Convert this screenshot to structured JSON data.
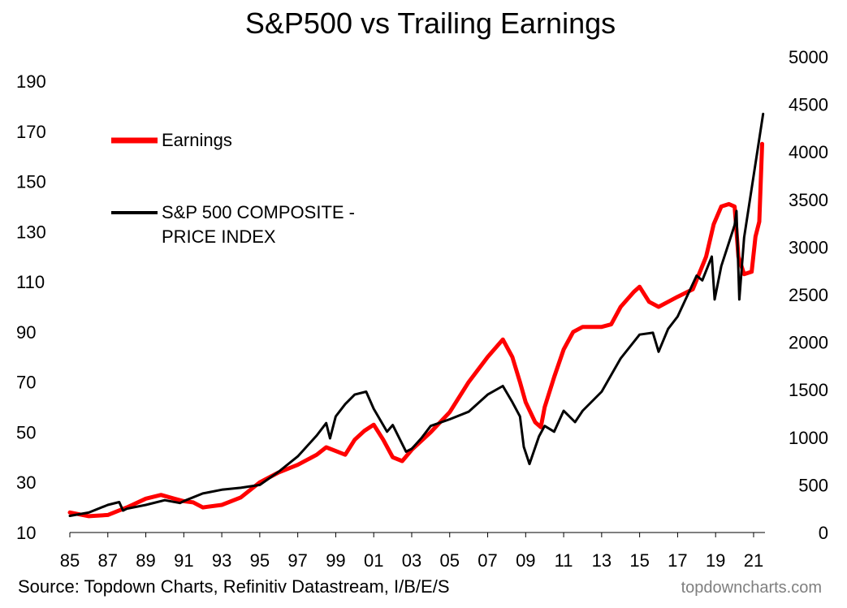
{
  "chart_data": {
    "type": "line",
    "title": "S&P500 vs Trailing Earnings",
    "x_ticks": [
      "85",
      "87",
      "89",
      "91",
      "93",
      "95",
      "97",
      "99",
      "01",
      "03",
      "05",
      "07",
      "09",
      "11",
      "13",
      "15",
      "17",
      "19",
      "21"
    ],
    "x_range": [
      1985,
      2021.6
    ],
    "y_left": {
      "range": [
        10,
        190
      ],
      "ticks": [
        10,
        30,
        50,
        70,
        90,
        110,
        130,
        150,
        170,
        190
      ]
    },
    "y_right": {
      "range": [
        0,
        5000
      ],
      "ticks": [
        0,
        500,
        1000,
        1500,
        2000,
        2500,
        3000,
        3500,
        4000,
        4500,
        5000
      ]
    },
    "legend": {
      "placement": "top-left",
      "entries": [
        "Earnings",
        "S&P 500 COMPOSITE -",
        "PRICE INDEX"
      ]
    },
    "series": [
      {
        "name": "Earnings",
        "axis": "left",
        "color": "#ff0000",
        "points": [
          [
            1985.0,
            18
          ],
          [
            1986.0,
            16.5
          ],
          [
            1987.0,
            17
          ],
          [
            1988.0,
            20
          ],
          [
            1989.0,
            23.5
          ],
          [
            1989.8,
            25
          ],
          [
            1990.5,
            23.5
          ],
          [
            1991.0,
            22.5
          ],
          [
            1991.5,
            22
          ],
          [
            1992.0,
            20
          ],
          [
            1993.0,
            21
          ],
          [
            1994.0,
            24
          ],
          [
            1995.0,
            30
          ],
          [
            1996.0,
            34
          ],
          [
            1997.0,
            37
          ],
          [
            1998.0,
            41
          ],
          [
            1998.5,
            44
          ],
          [
            1999.0,
            42.5
          ],
          [
            1999.5,
            41
          ],
          [
            2000.0,
            47
          ],
          [
            2000.5,
            50.5
          ],
          [
            2001.0,
            53
          ],
          [
            2001.5,
            47
          ],
          [
            2002.0,
            40
          ],
          [
            2002.5,
            38.5
          ],
          [
            2003.0,
            43
          ],
          [
            2004.0,
            50
          ],
          [
            2005.0,
            58
          ],
          [
            2006.0,
            70
          ],
          [
            2007.0,
            80
          ],
          [
            2007.8,
            87
          ],
          [
            2008.3,
            80
          ],
          [
            2008.7,
            70
          ],
          [
            2009.0,
            62
          ],
          [
            2009.5,
            54
          ],
          [
            2009.8,
            52
          ],
          [
            2010.0,
            60
          ],
          [
            2010.5,
            72
          ],
          [
            2011.0,
            83
          ],
          [
            2011.5,
            90
          ],
          [
            2012.0,
            92
          ],
          [
            2013.0,
            92
          ],
          [
            2013.5,
            93
          ],
          [
            2014.0,
            100
          ],
          [
            2014.7,
            106
          ],
          [
            2015.0,
            108
          ],
          [
            2015.5,
            102
          ],
          [
            2016.0,
            100
          ],
          [
            2016.5,
            102
          ],
          [
            2017.0,
            104
          ],
          [
            2017.8,
            107
          ],
          [
            2018.5,
            120
          ],
          [
            2018.9,
            133
          ],
          [
            2019.3,
            140
          ],
          [
            2019.7,
            141
          ],
          [
            2020.0,
            140
          ],
          [
            2020.2,
            120
          ],
          [
            2020.5,
            113
          ],
          [
            2020.9,
            114
          ],
          [
            2021.1,
            128
          ],
          [
            2021.3,
            134
          ],
          [
            2021.45,
            165
          ]
        ]
      },
      {
        "name": "S&P 500 COMPOSITE - PRICE INDEX",
        "axis": "right",
        "color": "#000000",
        "points": [
          [
            1985.0,
            175
          ],
          [
            1986.0,
            210
          ],
          [
            1987.0,
            290
          ],
          [
            1987.6,
            320
          ],
          [
            1987.8,
            230
          ],
          [
            1988.0,
            250
          ],
          [
            1989.0,
            290
          ],
          [
            1990.0,
            340
          ],
          [
            1990.8,
            310
          ],
          [
            1991.0,
            330
          ],
          [
            1992.0,
            410
          ],
          [
            1993.0,
            450
          ],
          [
            1994.0,
            470
          ],
          [
            1995.0,
            500
          ],
          [
            1996.0,
            640
          ],
          [
            1997.0,
            800
          ],
          [
            1998.0,
            1020
          ],
          [
            1998.5,
            1150
          ],
          [
            1998.7,
            990
          ],
          [
            1999.0,
            1220
          ],
          [
            1999.5,
            1350
          ],
          [
            2000.0,
            1450
          ],
          [
            2000.6,
            1480
          ],
          [
            2001.0,
            1300
          ],
          [
            2001.7,
            1060
          ],
          [
            2002.0,
            1130
          ],
          [
            2002.7,
            850
          ],
          [
            2003.0,
            880
          ],
          [
            2003.5,
            990
          ],
          [
            2004.0,
            1120
          ],
          [
            2005.0,
            1190
          ],
          [
            2006.0,
            1270
          ],
          [
            2007.0,
            1450
          ],
          [
            2007.8,
            1540
          ],
          [
            2008.3,
            1370
          ],
          [
            2008.7,
            1220
          ],
          [
            2008.9,
            900
          ],
          [
            2009.2,
            720
          ],
          [
            2009.7,
            1010
          ],
          [
            2010.0,
            1120
          ],
          [
            2010.5,
            1060
          ],
          [
            2011.0,
            1280
          ],
          [
            2011.6,
            1160
          ],
          [
            2012.0,
            1280
          ],
          [
            2013.0,
            1480
          ],
          [
            2014.0,
            1830
          ],
          [
            2015.0,
            2080
          ],
          [
            2015.7,
            2100
          ],
          [
            2016.0,
            1900
          ],
          [
            2016.5,
            2140
          ],
          [
            2017.0,
            2270
          ],
          [
            2018.0,
            2700
          ],
          [
            2018.3,
            2650
          ],
          [
            2018.8,
            2900
          ],
          [
            2018.95,
            2450
          ],
          [
            2019.3,
            2800
          ],
          [
            2020.0,
            3230
          ],
          [
            2020.1,
            3380
          ],
          [
            2020.25,
            2450
          ],
          [
            2020.5,
            3100
          ],
          [
            2021.0,
            3750
          ],
          [
            2021.5,
            4400
          ]
        ]
      }
    ]
  },
  "source": "Source: Topdown Charts, Refinitiv Datastream, I/B/E/S",
  "brand": "topdowncharts.com"
}
